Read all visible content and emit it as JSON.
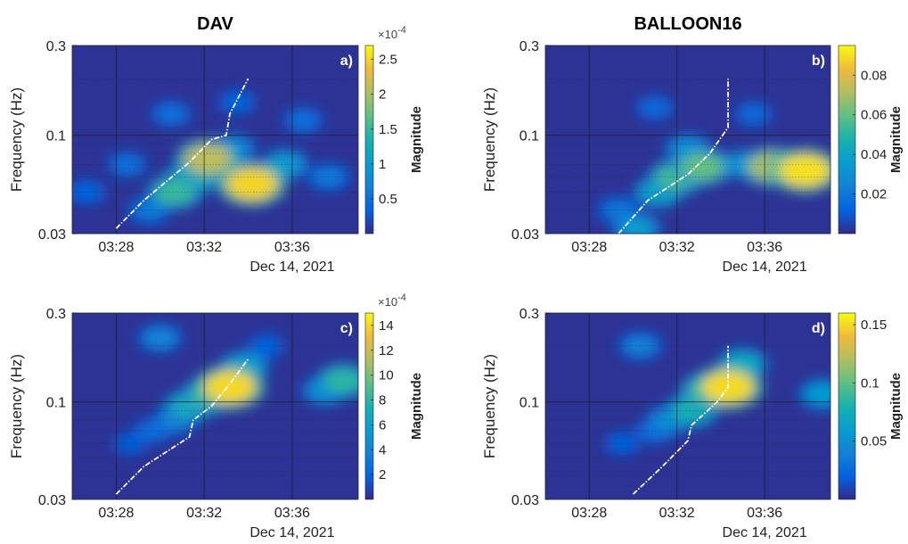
{
  "chart_data": [
    {
      "type": "heatmap",
      "panel": "a)",
      "title": "DAV",
      "ylabel": "Frequency (Hz)",
      "xlabel": "Dec 14, 2021",
      "xticks": [
        "03:28",
        "03:32",
        "03:36"
      ],
      "yticks": [
        "0.3",
        "0.1",
        "0.03"
      ],
      "yscale": "log",
      "ylim": [
        0.03,
        0.3
      ],
      "xlim_minutes": [
        "03:26",
        "03:39"
      ],
      "colorbar": {
        "label": "Magnitude",
        "exponent": "×10^-4",
        "ticks": [
          "0.5",
          "1",
          "1.5",
          "2",
          "2.5"
        ],
        "range": [
          0,
          2.7
        ]
      },
      "dispersion_curve": {
        "time": [
          "03:28",
          "03:29:15",
          "03:31:20",
          "03:32:20",
          "03:33",
          "03:33:10",
          "03:34"
        ],
        "freq_hz": [
          0.032,
          0.045,
          0.072,
          0.095,
          0.1,
          0.13,
          0.2
        ]
      },
      "hotspots": [
        {
          "time": "03:34:10",
          "freq_hz": 0.055,
          "magnitude": 2.5
        },
        {
          "time": "03:32:10",
          "freq_hz": 0.075,
          "magnitude": 2.1
        },
        {
          "time": "03:30:40",
          "freq_hz": 0.05,
          "magnitude": 1.5
        },
        {
          "time": "03:31:30",
          "freq_hz": 0.06,
          "magnitude": 1.4
        },
        {
          "time": "03:35:40",
          "freq_hz": 0.07,
          "magnitude": 1.0
        },
        {
          "time": "03:29:30",
          "freq_hz": 0.04,
          "magnitude": 0.6
        },
        {
          "time": "03:33:20",
          "freq_hz": 0.085,
          "magnitude": 0.8
        },
        {
          "time": "03:37:40",
          "freq_hz": 0.06,
          "magnitude": 0.6
        },
        {
          "time": "03:30:30",
          "freq_hz": 0.13,
          "magnitude": 0.5
        },
        {
          "time": "03:33:30",
          "freq_hz": 0.15,
          "magnitude": 0.4
        },
        {
          "time": "03:36:30",
          "freq_hz": 0.12,
          "magnitude": 0.5
        },
        {
          "time": "03:28:30",
          "freq_hz": 0.07,
          "magnitude": 0.5
        },
        {
          "time": "03:26:40",
          "freq_hz": 0.05,
          "magnitude": 0.4
        }
      ]
    },
    {
      "type": "heatmap",
      "panel": "b)",
      "title": "BALLOON16",
      "ylabel": "Frequency (Hz)",
      "xlabel": "Dec 14, 2021",
      "xticks": [
        "03:28",
        "03:32",
        "03:36"
      ],
      "yticks": [
        "0.3",
        "0.1",
        "0.03"
      ],
      "yscale": "log",
      "ylim": [
        0.03,
        0.3
      ],
      "xlim_minutes": [
        "03:26",
        "03:39"
      ],
      "colorbar": {
        "label": "Magnitude",
        "exponent": "",
        "ticks": [
          "0.02",
          "0.04",
          "0.06",
          "0.08"
        ],
        "range": [
          0,
          0.095
        ]
      },
      "dispersion_curve": {
        "time": [
          "03:29:20",
          "03:30:40",
          "03:32:30",
          "03:33:30",
          "03:34:20",
          "03:34:20"
        ],
        "freq_hz": [
          0.03,
          0.045,
          0.062,
          0.08,
          0.11,
          0.2
        ]
      },
      "hotspots": [
        {
          "time": "03:37:50",
          "freq_hz": 0.065,
          "magnitude": 0.09
        },
        {
          "time": "03:36:20",
          "freq_hz": 0.068,
          "magnitude": 0.07
        },
        {
          "time": "03:33:10",
          "freq_hz": 0.068,
          "magnitude": 0.06
        },
        {
          "time": "03:32:00",
          "freq_hz": 0.06,
          "magnitude": 0.055
        },
        {
          "time": "03:31:10",
          "freq_hz": 0.05,
          "magnitude": 0.04
        },
        {
          "time": "03:30:10",
          "freq_hz": 0.032,
          "magnitude": 0.035
        },
        {
          "time": "03:29:20",
          "freq_hz": 0.04,
          "magnitude": 0.02
        },
        {
          "time": "03:32:30",
          "freq_hz": 0.085,
          "magnitude": 0.03
        },
        {
          "time": "03:35:00",
          "freq_hz": 0.07,
          "magnitude": 0.03
        },
        {
          "time": "03:31:00",
          "freq_hz": 0.14,
          "magnitude": 0.015
        },
        {
          "time": "03:35:30",
          "freq_hz": 0.13,
          "magnitude": 0.015
        }
      ]
    },
    {
      "type": "heatmap",
      "panel": "c)",
      "title": "",
      "ylabel": "Frequency (Hz)",
      "xlabel": "Dec 14, 2021",
      "xticks": [
        "03:28",
        "03:32",
        "03:36"
      ],
      "yticks": [
        "0.3",
        "0.1",
        "0.03"
      ],
      "yscale": "log",
      "ylim": [
        0.03,
        0.3
      ],
      "xlim_minutes": [
        "03:26",
        "03:39"
      ],
      "colorbar": {
        "label": "Magnitude",
        "exponent": "×10^-4",
        "ticks": [
          "2",
          "4",
          "6",
          "8",
          "10",
          "12",
          "14"
        ],
        "range": [
          0,
          15
        ]
      },
      "dispersion_curve": {
        "time": [
          "03:28",
          "03:29:15",
          "03:31:20",
          "03:31:30",
          "03:32:20",
          "03:33:10",
          "03:34"
        ],
        "freq_hz": [
          0.032,
          0.045,
          0.065,
          0.08,
          0.095,
          0.125,
          0.17
        ]
      },
      "hotspots": [
        {
          "time": "03:33:10",
          "freq_hz": 0.12,
          "magnitude": 14
        },
        {
          "time": "03:32:20",
          "freq_hz": 0.11,
          "magnitude": 9
        },
        {
          "time": "03:31:20",
          "freq_hz": 0.095,
          "magnitude": 7
        },
        {
          "time": "03:33:50",
          "freq_hz": 0.155,
          "magnitude": 6
        },
        {
          "time": "03:30:40",
          "freq_hz": 0.08,
          "magnitude": 4
        },
        {
          "time": "03:38:20",
          "freq_hz": 0.13,
          "magnitude": 8
        },
        {
          "time": "03:37:30",
          "freq_hz": 0.115,
          "magnitude": 5
        },
        {
          "time": "03:30:00",
          "freq_hz": 0.22,
          "magnitude": 4
        },
        {
          "time": "03:29:40",
          "freq_hz": 0.07,
          "magnitude": 2.5
        },
        {
          "time": "03:28:40",
          "freq_hz": 0.06,
          "magnitude": 1.8
        },
        {
          "time": "03:34:50",
          "freq_hz": 0.2,
          "magnitude": 2
        }
      ]
    },
    {
      "type": "heatmap",
      "panel": "d)",
      "title": "",
      "ylabel": "Frequency (Hz)",
      "xlabel": "Dec 14, 2021",
      "xticks": [
        "03:28",
        "03:32",
        "03:36"
      ],
      "yticks": [
        "0.3",
        "0.1",
        "0.03"
      ],
      "yscale": "log",
      "ylim": [
        0.03,
        0.3
      ],
      "xlim_minutes": [
        "03:26",
        "03:39"
      ],
      "colorbar": {
        "label": "Magnitude",
        "exponent": "",
        "ticks": [
          "0.05",
          "0.1",
          "0.15"
        ],
        "range": [
          0,
          0.16
        ]
      },
      "dispersion_curve": {
        "time": [
          "03:30",
          "03:31:20",
          "03:32:30",
          "03:32:40",
          "03:33:50",
          "03:34:20",
          "03:34:20"
        ],
        "freq_hz": [
          0.032,
          0.045,
          0.062,
          0.075,
          0.1,
          0.12,
          0.2
        ]
      },
      "hotspots": [
        {
          "time": "03:34:20",
          "freq_hz": 0.12,
          "magnitude": 0.15
        },
        {
          "time": "03:33:30",
          "freq_hz": 0.115,
          "magnitude": 0.1
        },
        {
          "time": "03:32:40",
          "freq_hz": 0.09,
          "magnitude": 0.08
        },
        {
          "time": "03:35:00",
          "freq_hz": 0.16,
          "magnitude": 0.07
        },
        {
          "time": "03:31:40",
          "freq_hz": 0.08,
          "magnitude": 0.05
        },
        {
          "time": "03:38:40",
          "freq_hz": 0.11,
          "magnitude": 0.06
        },
        {
          "time": "03:30:20",
          "freq_hz": 0.2,
          "magnitude": 0.04
        },
        {
          "time": "03:31:00",
          "freq_hz": 0.07,
          "magnitude": 0.03
        },
        {
          "time": "03:29:30",
          "freq_hz": 0.06,
          "magnitude": 0.02
        }
      ]
    }
  ]
}
